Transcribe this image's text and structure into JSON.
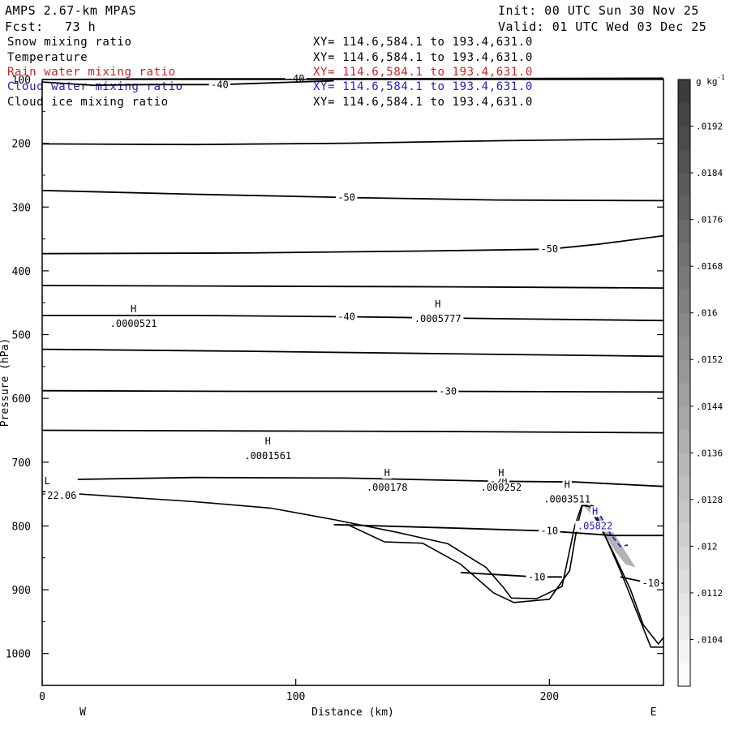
{
  "header": {
    "model": "AMPS 2.67-km MPAS",
    "init": "Init: 00 UTC Sun 30 Nov 25",
    "fcst_label": "Fcst:",
    "fcst_value": "73 h",
    "valid": "Valid: 01 UTC Wed 03 Dec 25"
  },
  "fields": [
    {
      "name": "Snow mixing ratio",
      "xy": "XY= 114.6,584.1 to 193.4,631.0",
      "color": "#000000"
    },
    {
      "name": "Temperature",
      "xy": "XY= 114.6,584.1 to 193.4,631.0",
      "color": "#000000"
    },
    {
      "name": "Rain water mixing ratio",
      "xy": "XY= 114.6,584.1 to 193.4,631.0",
      "color": "#d42020"
    },
    {
      "name": "Cloud water mixing ratio",
      "xy": "XY= 114.6,584.1 to 193.4,631.0",
      "color": "#2020c8"
    },
    {
      "name": "Cloud ice mixing ratio",
      "xy": "XY= 114.6,584.1 to 193.4,631.0",
      "color": "#000000"
    }
  ],
  "chart_data": {
    "type": "contour cross-section",
    "xlabel": "Distance (km)",
    "ylabel": "Pressure (hPa)",
    "xlim": [
      0,
      245
    ],
    "ylim": [
      1050,
      100
    ],
    "x_ticks": [
      0,
      100,
      200
    ],
    "y_ticks": [
      100,
      200,
      300,
      400,
      500,
      600,
      700,
      800,
      900,
      1000
    ],
    "left_end_label": "W",
    "right_end_label": "E",
    "temperature_contours": [
      {
        "label": "-40",
        "points": [
          [
            0,
            100
          ],
          [
            50,
            99
          ],
          [
            100,
            99
          ],
          [
            245,
            98
          ]
        ]
      },
      {
        "label": "-40",
        "points": [
          [
            0,
            104
          ],
          [
            20,
            109
          ],
          [
            40,
            108
          ],
          [
            70,
            108
          ],
          [
            100,
            104
          ],
          [
            115,
            102
          ]
        ]
      },
      {
        "label": "",
        "points": [
          [
            0,
            201
          ],
          [
            60,
            202
          ],
          [
            120,
            200
          ],
          [
            180,
            196
          ],
          [
            245,
            193
          ]
        ]
      },
      {
        "label": "-50",
        "points": [
          [
            0,
            274
          ],
          [
            60,
            280
          ],
          [
            120,
            285
          ],
          [
            180,
            289
          ],
          [
            245,
            290
          ]
        ]
      },
      {
        "label": "-50",
        "points": [
          [
            0,
            373
          ],
          [
            80,
            372
          ],
          [
            150,
            369
          ],
          [
            200,
            366
          ],
          [
            220,
            358
          ],
          [
            245,
            345
          ]
        ]
      },
      {
        "label": "",
        "points": [
          [
            0,
            423
          ],
          [
            80,
            424
          ],
          [
            160,
            425
          ],
          [
            245,
            427
          ]
        ]
      },
      {
        "label": "-40",
        "points": [
          [
            0,
            470
          ],
          [
            60,
            470
          ],
          [
            120,
            472
          ],
          [
            180,
            475
          ],
          [
            245,
            478
          ]
        ]
      },
      {
        "label": "",
        "points": [
          [
            0,
            523
          ],
          [
            80,
            526
          ],
          [
            160,
            530
          ],
          [
            245,
            534
          ]
        ]
      },
      {
        "label": "-30",
        "points": [
          [
            0,
            588
          ],
          [
            80,
            589
          ],
          [
            160,
            589
          ],
          [
            245,
            590
          ]
        ]
      },
      {
        "label": "",
        "points": [
          [
            0,
            650
          ],
          [
            80,
            651
          ],
          [
            160,
            652
          ],
          [
            245,
            654
          ]
        ]
      },
      {
        "label": "-20",
        "points": [
          [
            14,
            727
          ],
          [
            60,
            724
          ],
          [
            120,
            725
          ],
          [
            180,
            730
          ],
          [
            210,
            731
          ],
          [
            245,
            738
          ]
        ]
      },
      {
        "label": "-10",
        "points": [
          [
            115,
            798
          ],
          [
            160,
            803
          ],
          [
            200,
            808
          ],
          [
            225,
            815
          ],
          [
            245,
            815
          ]
        ]
      },
      {
        "label": "-10",
        "points": [
          [
            165,
            873
          ],
          [
            195,
            880
          ],
          [
            205,
            880
          ]
        ]
      },
      {
        "label": "-10",
        "points": [
          [
            228,
            880
          ],
          [
            240,
            890
          ],
          [
            245,
            890
          ]
        ]
      }
    ],
    "maxima": [
      {
        "label": "H",
        "value": ".0000521",
        "x": 36,
        "p": 483
      },
      {
        "label": "H",
        "value": ".0005777",
        "x": 156,
        "p": 475
      },
      {
        "label": "H",
        "value": ".0001561",
        "x": 89,
        "p": 690
      },
      {
        "label": "H",
        "value": ".000178",
        "x": 136,
        "p": 740
      },
      {
        "label": "H",
        "value": ".000252",
        "x": 181,
        "p": 740
      },
      {
        "label": "H",
        "value": ".0003511",
        "x": 207,
        "p": 758
      },
      {
        "label": "H",
        "value": ".05822",
        "x": 218,
        "p": 800,
        "field": "Cloud water mixing ratio"
      }
    ],
    "minimum": {
      "label": "L",
      "value": "22.06",
      "x": 2,
      "p": 750
    },
    "terrain": [
      [
        0,
        746
      ],
      [
        30,
        754
      ],
      [
        60,
        762
      ],
      [
        90,
        772
      ],
      [
        115,
        790
      ],
      [
        140,
        810
      ],
      [
        160,
        828
      ],
      [
        175,
        865
      ],
      [
        182,
        897
      ],
      [
        185,
        913
      ],
      [
        195,
        914
      ],
      [
        205,
        895
      ],
      [
        210,
        800
      ],
      [
        213,
        765
      ],
      [
        216,
        770
      ],
      [
        225,
        840
      ],
      [
        232,
        900
      ],
      [
        237,
        955
      ],
      [
        243,
        985
      ],
      [
        245,
        975
      ]
    ],
    "terrain2": [
      [
        120,
        797
      ],
      [
        135,
        825
      ],
      [
        150,
        827
      ],
      [
        165,
        860
      ],
      [
        178,
        905
      ],
      [
        186,
        920
      ],
      [
        200,
        915
      ],
      [
        208,
        870
      ],
      [
        211,
        800
      ],
      [
        213,
        768
      ],
      [
        217,
        770
      ],
      [
        228,
        870
      ],
      [
        236,
        950
      ],
      [
        240,
        990
      ],
      [
        245,
        990
      ]
    ],
    "colorbar": {
      "units": "g kg",
      "units_exp": "-1",
      "min": 0.0096,
      "max": 0.02,
      "step": 0.0004,
      "tick_labels": [
        ".0104",
        ".0112",
        ".012",
        ".0128",
        ".0136",
        ".0144",
        ".0152",
        ".016",
        ".0168",
        ".0176",
        ".0184",
        ".0192"
      ]
    }
  }
}
